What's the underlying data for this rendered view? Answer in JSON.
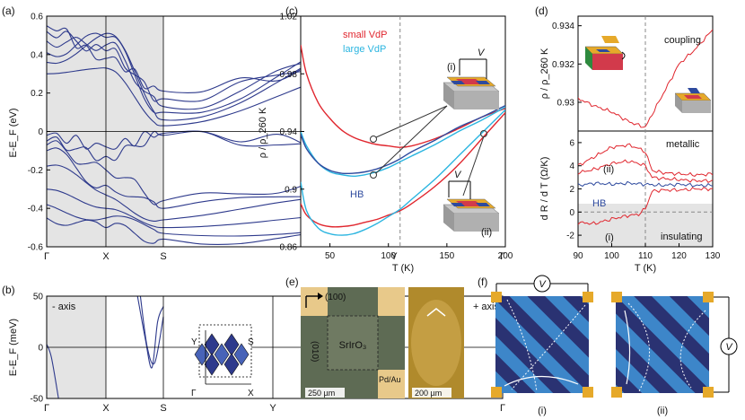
{
  "colors": {
    "band": "#2e3a8c",
    "red": "#e0262e",
    "cyan": "#2bb5e0",
    "blue": "#2e4a9e",
    "gold": "#e6a92a",
    "shade": "#e4e4e4",
    "dash": "#888888"
  },
  "panels": {
    "a": {
      "label": "(a)"
    },
    "b": {
      "label": "(b)",
      "left_text": "- axis",
      "right_text": "+ axis",
      "inset_labels": {
        "Y": "Y",
        "S": "S",
        "G": "Γ",
        "X": "X"
      }
    },
    "c": {
      "label": "(c)"
    },
    "d": {
      "label": "(d)"
    },
    "e": {
      "label": "(e)",
      "dir_100": "(100)",
      "dir_010": "(010)",
      "sample": "SrIrO₃",
      "contacts": "Pd/Au",
      "scale1": "250 µm",
      "scale2": "200 µm"
    },
    "f": {
      "label": "(f)",
      "v_label": "V",
      "sub_i": "(i)",
      "sub_ii": "(ii)"
    }
  },
  "chart_data": [
    {
      "id": "a",
      "type": "line",
      "title": "",
      "ylabel": "E-E_F (eV)",
      "ylim": [
        -0.6,
        0.6
      ],
      "yticks": [
        "0.6",
        "0.4",
        "0.2",
        "0",
        "-0.2",
        "-0.4",
        "-0.6"
      ],
      "x_labels": [
        "Γ",
        "X",
        "S",
        "Y",
        "Γ"
      ],
      "grid": "vertical at high-symmetry points",
      "shaded_segments": [
        "Γ-X",
        "X-S"
      ],
      "series": [
        {
          "values_at_points": [
            0.36,
            0.51,
            0.06,
            0.52,
            0.36
          ]
        },
        {
          "values_at_points": [
            0.41,
            0.49,
            0.1,
            0.48,
            0.41
          ]
        },
        {
          "values_at_points": [
            0.47,
            0.45,
            0.13,
            0.45,
            0.47
          ]
        },
        {
          "values_at_points": [
            0.52,
            0.42,
            0.17,
            0.42,
            0.52
          ]
        },
        {
          "values_at_points": [
            0.55,
            0.38,
            0.21,
            0.38,
            0.55
          ]
        },
        {
          "values_at_points": [
            0.3,
            0.33,
            0.03,
            0.34,
            0.3
          ]
        },
        {
          "values_at_points": [
            -0.02,
            -0.08,
            -0.01,
            -0.08,
            -0.02
          ]
        },
        {
          "values_at_points": [
            -0.05,
            -0.13,
            -0.02,
            -0.12,
            -0.05
          ]
        },
        {
          "values_at_points": [
            -0.07,
            -0.2,
            -0.36,
            -0.22,
            -0.07
          ]
        },
        {
          "values_at_points": [
            -0.1,
            -0.28,
            -0.4,
            -0.28,
            -0.1
          ]
        },
        {
          "values_at_points": [
            -0.18,
            -0.33,
            -0.46,
            -0.34,
            -0.18
          ]
        },
        {
          "values_at_points": [
            -0.3,
            -0.4,
            -0.5,
            -0.42,
            -0.3
          ]
        },
        {
          "values_at_points": [
            -0.38,
            -0.45,
            -0.53,
            -0.48,
            -0.38
          ]
        },
        {
          "values_at_points": [
            -0.45,
            -0.5,
            -0.56,
            -0.55,
            -0.45
          ]
        }
      ]
    },
    {
      "id": "b",
      "type": "line",
      "title": "",
      "ylabel": "E-E_F (meV)",
      "ylim": [
        -50,
        50
      ],
      "yticks": [
        "50",
        "0",
        "-50"
      ],
      "x_labels": [
        "Γ",
        "X",
        "S",
        "Y",
        "Γ"
      ],
      "shaded_segments": [
        "Γ-X"
      ],
      "series": [
        {
          "name_hidden": "1",
          "x": [
            0,
            0.08,
            0.2
          ],
          "y": [
            3,
            -10,
            -50
          ]
        },
        {
          "name_hidden": "2",
          "x": [
            1.55,
            1.68,
            1.8,
            1.9,
            2.0
          ],
          "y": [
            50,
            10,
            -20,
            25,
            40
          ]
        },
        {
          "name_hidden": "3",
          "x": [
            1.6,
            1.72,
            1.85,
            2.0
          ],
          "y": [
            50,
            0,
            -15,
            30
          ]
        }
      ]
    },
    {
      "id": "c",
      "type": "line",
      "title": "",
      "xlabel": "T (K)",
      "ylabel": "ρ / ρ_260 K",
      "xlim": [
        25,
        200
      ],
      "ylim": [
        0.86,
        1.02
      ],
      "xticks": [
        "50",
        "100",
        "150",
        "200"
      ],
      "yticks": [
        "1.02",
        "0.98",
        "0.94",
        "0.9",
        "0.86"
      ],
      "vline_x": 110,
      "legend": [
        "small VdP",
        "large VdP"
      ],
      "annotations": [
        "HB",
        "(i)",
        "(ii)",
        "V"
      ],
      "series": [
        {
          "name": "small VdP",
          "color": "red",
          "x": [
            25,
            30,
            40,
            50,
            60,
            70,
            80,
            90,
            100,
            110,
            120,
            140,
            160,
            180,
            200
          ],
          "y": [
            1.0,
            0.98,
            0.96,
            0.949,
            0.941,
            0.936,
            0.933,
            0.931,
            0.93,
            0.929,
            0.93,
            0.935,
            0.942,
            0.95,
            0.956
          ]
        },
        {
          "color": "red",
          "x": [
            25,
            30,
            40,
            50,
            60,
            70,
            80,
            90,
            100,
            110,
            120,
            140,
            160,
            180,
            200
          ],
          "y": [
            0.89,
            0.882,
            0.876,
            0.874,
            0.874,
            0.875,
            0.877,
            0.879,
            0.882,
            0.885,
            0.89,
            0.902,
            0.917,
            0.935,
            0.953
          ]
        },
        {
          "name": "large VdP",
          "color": "cyan",
          "x": [
            25,
            30,
            40,
            50,
            60,
            70,
            80,
            90,
            100,
            110,
            120,
            140,
            160,
            180,
            200
          ],
          "y": [
            0.905,
            0.885,
            0.873,
            0.869,
            0.868,
            0.869,
            0.872,
            0.876,
            0.881,
            0.886,
            0.893,
            0.907,
            0.923,
            0.939,
            0.955
          ]
        },
        {
          "color": "cyan",
          "x": [
            25,
            30,
            40,
            50,
            60,
            70,
            80,
            90,
            100,
            110,
            120,
            140,
            160,
            180,
            200
          ],
          "y": [
            0.94,
            0.93,
            0.918,
            0.912,
            0.91,
            0.909,
            0.91,
            0.912,
            0.915,
            0.919,
            0.923,
            0.931,
            0.94,
            0.948,
            0.957
          ]
        },
        {
          "name": "HB",
          "color": "blue",
          "x": [
            25,
            30,
            40,
            50,
            60,
            70,
            80,
            90,
            100,
            110,
            120,
            140,
            160,
            180,
            200
          ],
          "y": [
            0.938,
            0.928,
            0.918,
            0.913,
            0.911,
            0.911,
            0.912,
            0.914,
            0.917,
            0.921,
            0.926,
            0.934,
            0.943,
            0.95,
            0.958
          ]
        }
      ]
    },
    {
      "id": "d",
      "type": "line",
      "xlabel": "T (K)",
      "xlim": [
        90,
        130
      ],
      "xticks": [
        "90",
        "100",
        "110",
        "120",
        "130"
      ],
      "vline_x": 110,
      "annotations": [
        "coupling",
        "metallic",
        "insulating",
        "(i)",
        "(ii)",
        "HB"
      ],
      "top": {
        "ylabel": "ρ / ρ_260 K",
        "ylim": [
          0.9285,
          0.9345
        ],
        "yticks": [
          "0.934",
          "0.932",
          "0.93"
        ],
        "series": [
          {
            "color": "red",
            "x": [
              90,
              95,
              100,
              105,
              108,
              110,
              113,
              117,
              120,
              125,
              130
            ],
            "y": [
              0.9302,
              0.9298,
              0.9295,
              0.929,
              0.9288,
              0.9287,
              0.9297,
              0.931,
              0.932,
              0.9328,
              0.9338
            ]
          }
        ]
      },
      "bottom": {
        "ylabel": "d R / d T (Ω/K)",
        "ylim": [
          -3,
          7
        ],
        "yticks": [
          "6",
          "4",
          "2",
          "0",
          "-2"
        ],
        "series": [
          {
            "name": "(ii)",
            "color": "red",
            "x": [
              90,
              95,
              100,
              105,
              108,
              110,
              112,
              115,
              120,
              125,
              130
            ],
            "y": [
              4.0,
              4.8,
              5.6,
              5.8,
              5.5,
              5.2,
              3.6,
              3.4,
              3.3,
              3.2,
              3.3
            ]
          },
          {
            "color": "red",
            "x": [
              90,
              95,
              100,
              105,
              108,
              110,
              112,
              115,
              120,
              125,
              130
            ],
            "y": [
              3.4,
              3.7,
              4.2,
              4.4,
              4.2,
              4.0,
              3.0,
              2.9,
              2.8,
              2.7,
              2.7
            ]
          },
          {
            "name": "HB",
            "color": "blue",
            "x": [
              90,
              95,
              100,
              105,
              110,
              115,
              120,
              125,
              130
            ],
            "y": [
              2.3,
              2.5,
              2.4,
              2.5,
              2.4,
              2.3,
              2.4,
              2.3,
              2.3
            ]
          },
          {
            "name": "(i)",
            "color": "red",
            "x": [
              90,
              95,
              100,
              105,
              108,
              110,
              112,
              115,
              120,
              125,
              130
            ],
            "y": [
              -0.9,
              -1.0,
              -0.6,
              -0.3,
              -0.2,
              0.3,
              1.8,
              1.9,
              1.9,
              2.0,
              2.0
            ]
          }
        ]
      }
    }
  ]
}
